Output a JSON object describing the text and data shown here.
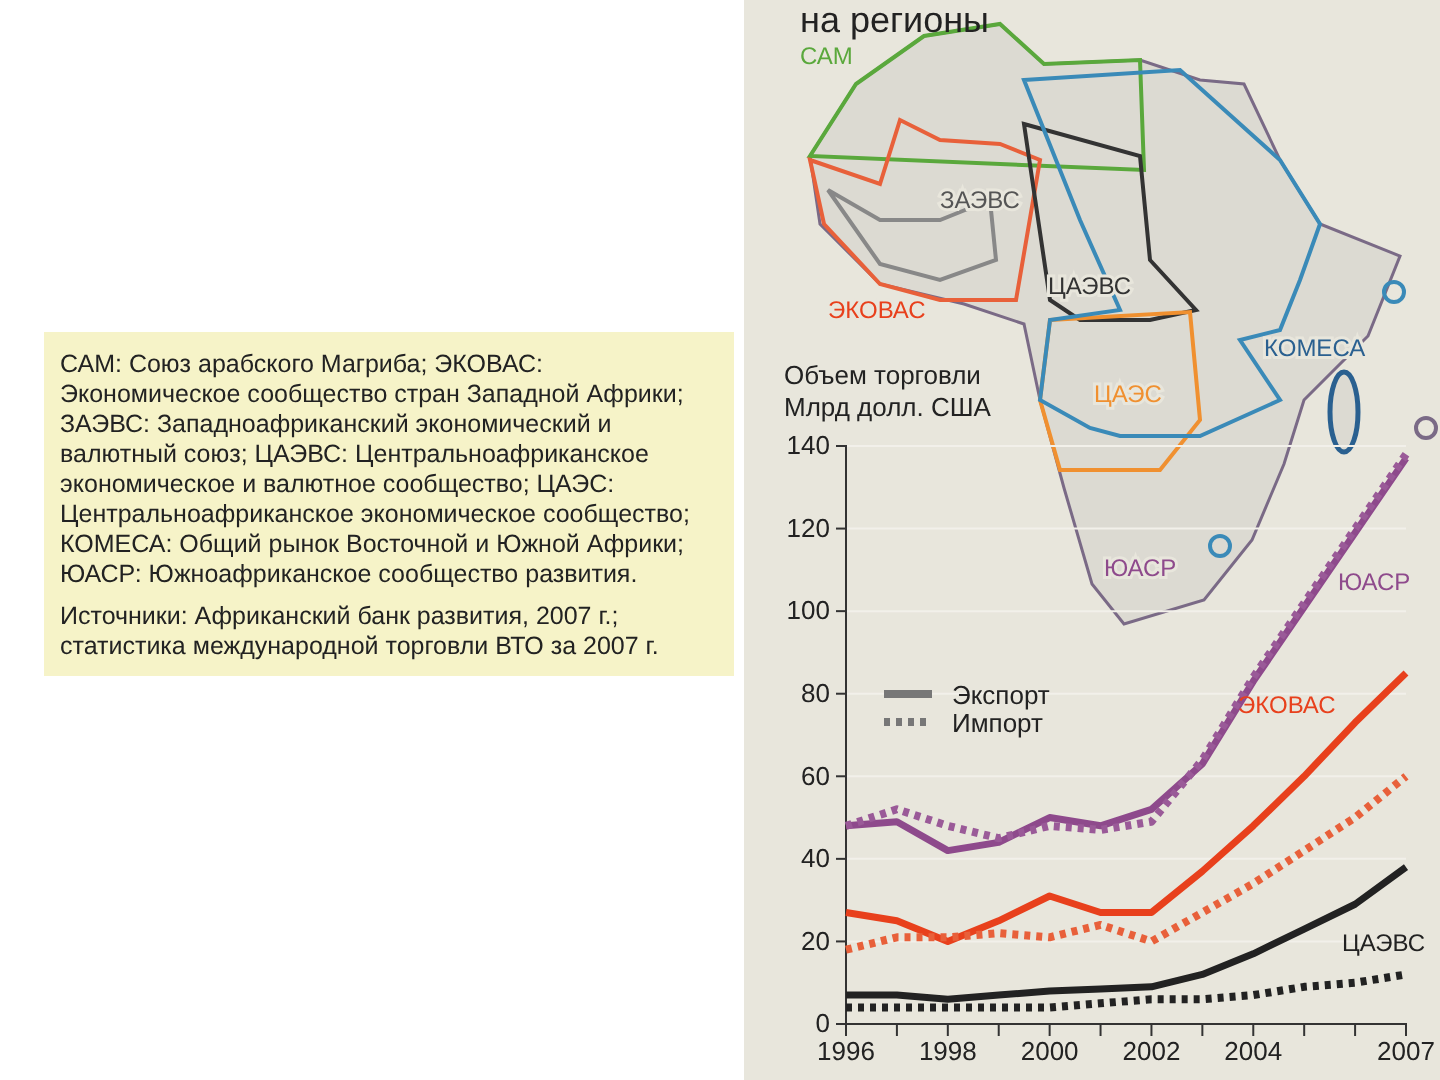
{
  "chart_data": {
    "type": "line",
    "title": "на регионы",
    "ylabel": "Объем торговли\nМлрд долл. США",
    "x": [
      1996,
      1997,
      1998,
      1999,
      2000,
      2001,
      2002,
      2003,
      2004,
      2005,
      2006,
      2007
    ],
    "xlim": [
      1996,
      2007
    ],
    "xticks": [
      1996,
      {
        "value": 1997,
        "label": null
      },
      1998,
      {
        "value": 1999,
        "label": null
      },
      2000,
      {
        "value": 2001,
        "label": null
      },
      2002,
      {
        "value": 2003,
        "label": null
      },
      2004,
      {
        "value": 2005,
        "label": null
      },
      {
        "value": 2006,
        "label": null
      },
      2007
    ],
    "ylim": [
      0,
      140
    ],
    "yticks": [
      0,
      20,
      40,
      60,
      80,
      100,
      120,
      140
    ],
    "grid": "y",
    "series": [
      {
        "name": "ЮАСР",
        "color": "#8e4a8c",
        "line_style": "solid",
        "values": [
          48,
          49,
          42,
          44,
          50,
          48,
          52,
          63,
          83,
          101,
          119,
          137
        ]
      },
      {
        "color": "#9a5a98",
        "line_style": "dotted",
        "values": [
          48,
          52,
          48,
          45,
          48,
          47,
          49,
          64,
          84,
          102,
          120,
          138
        ]
      },
      {
        "name": "ЭКОВАС",
        "color": "#e8401c",
        "line_style": "solid",
        "values": [
          27,
          25,
          20,
          25,
          31,
          27,
          27,
          37,
          48,
          60,
          73,
          85
        ]
      },
      {
        "color": "#e8603a",
        "line_style": "dotted",
        "values": [
          18,
          21,
          21,
          22,
          21,
          24,
          20,
          27,
          34,
          42,
          50,
          60
        ]
      },
      {
        "name": "ЦАЭВС",
        "color": "#222222",
        "line_style": "solid",
        "values": [
          7,
          7,
          6,
          7,
          8,
          8.5,
          9,
          12,
          17,
          23,
          29,
          38
        ]
      },
      {
        "color": "#222222",
        "line_style": "dotted",
        "values": [
          4,
          4,
          4,
          4,
          4,
          5,
          6,
          6,
          7,
          9,
          10,
          12
        ]
      }
    ],
    "annotations": [
      "Экспорт",
      "Импорт",
      "САМ",
      "ЗАЭВС",
      "ЦАЭВС",
      "ЭКОВАС",
      "КОМЕСА",
      "ЦАЭС",
      "ЮАСР",
      "САМ: Союз арабского Магриба; ЭКОВАС: Экономическое сообщество стран Западной Африки; ЗАЭВС: Западноафриканский экономический и валютный союз; ЦАЭВС: Центральноафриканское экономическое и валютное сообщество; ЦАЭС: Центральноафриканское экономическое сообщество; КОМЕСА: Общий рынок Восточной и Южной Африки; ЮАСР: Южноафриканское сообщество развития.",
      "Источники: Африканский банк развития, 2007 г.; статистика международной торговли ВТО за 2007 г."
    ]
  }
}
